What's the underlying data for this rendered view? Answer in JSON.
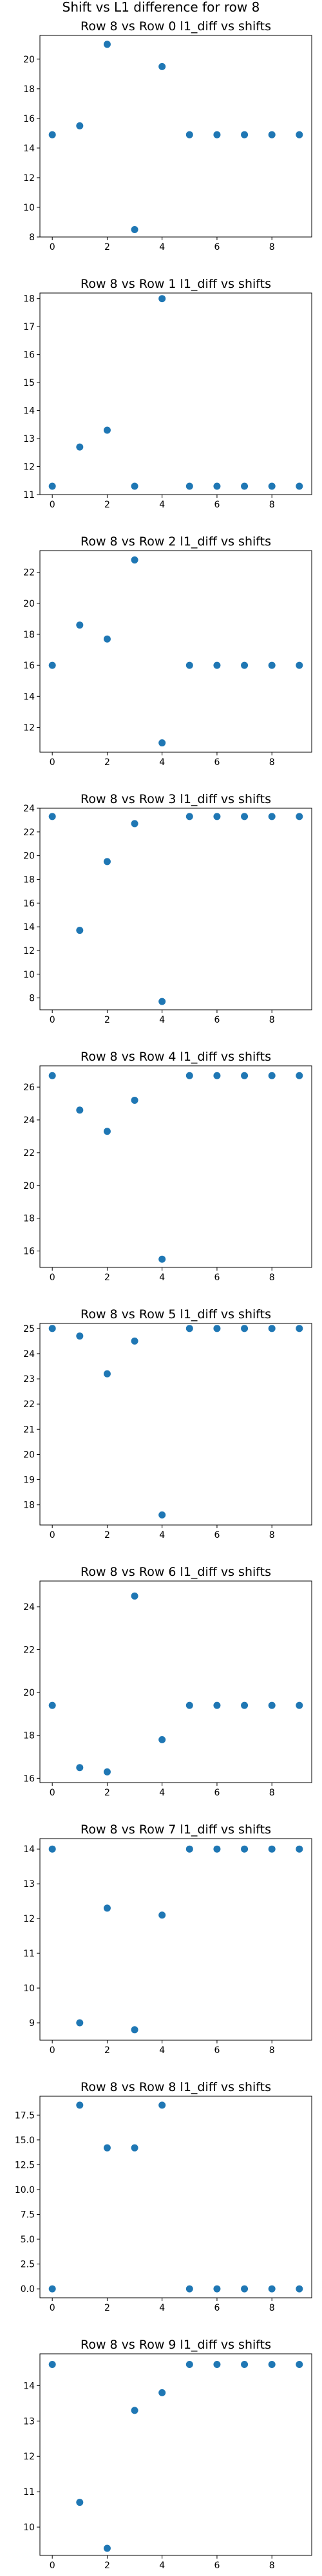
{
  "figure": {
    "suptitle": "Shift vs L1 difference for row 8"
  },
  "colors": {
    "marker": "#1f77b4",
    "axes": "#000000",
    "background": "#ffffff"
  },
  "chart_data": [
    {
      "type": "scatter",
      "title": "Row 8 vs Row 0 l1_diff vs shifts",
      "x": [
        0,
        1,
        2,
        3,
        4,
        5,
        6,
        7,
        8,
        9
      ],
      "y": [
        14.9,
        15.5,
        21.0,
        8.5,
        19.5,
        14.9,
        14.9,
        14.9,
        14.9,
        14.9
      ],
      "xlim": [
        -0.45,
        9.45
      ],
      "ylim": [
        8,
        21.6
      ],
      "xticks": [
        0,
        2,
        4,
        6,
        8
      ],
      "xtick_labels": [
        "0",
        "2",
        "4",
        "6",
        "8"
      ],
      "yticks": [
        8,
        10,
        12,
        14,
        16,
        18,
        20
      ],
      "ytick_labels": [
        "8",
        "10",
        "12",
        "14",
        "16",
        "18",
        "20"
      ]
    },
    {
      "type": "scatter",
      "title": "Row 8 vs Row 1 l1_diff vs shifts",
      "x": [
        0,
        1,
        2,
        3,
        4,
        5,
        6,
        7,
        8,
        9
      ],
      "y": [
        11.3,
        12.7,
        13.3,
        11.3,
        18.0,
        11.3,
        11.3,
        11.3,
        11.3,
        11.3
      ],
      "xlim": [
        -0.45,
        9.45
      ],
      "ylim": [
        11.0,
        18.2
      ],
      "xticks": [
        0,
        2,
        4,
        6,
        8
      ],
      "xtick_labels": [
        "0",
        "2",
        "4",
        "6",
        "8"
      ],
      "yticks": [
        11,
        12,
        13,
        14,
        15,
        16,
        17,
        18
      ],
      "ytick_labels": [
        "11",
        "12",
        "13",
        "14",
        "15",
        "16",
        "17",
        "18"
      ]
    },
    {
      "type": "scatter",
      "title": "Row 8 vs Row 2 l1_diff vs shifts",
      "x": [
        0,
        1,
        2,
        3,
        4,
        5,
        6,
        7,
        8,
        9
      ],
      "y": [
        16.0,
        18.6,
        17.7,
        22.8,
        11.0,
        16.0,
        16.0,
        16.0,
        16.0,
        16.0
      ],
      "xlim": [
        -0.45,
        9.45
      ],
      "ylim": [
        10.4,
        23.4
      ],
      "xticks": [
        0,
        2,
        4,
        6,
        8
      ],
      "xtick_labels": [
        "0",
        "2",
        "4",
        "6",
        "8"
      ],
      "yticks": [
        12,
        14,
        16,
        18,
        20,
        22
      ],
      "ytick_labels": [
        "12",
        "14",
        "16",
        "18",
        "20",
        "22"
      ]
    },
    {
      "type": "scatter",
      "title": "Row 8 vs Row 3 l1_diff vs shifts",
      "x": [
        0,
        1,
        2,
        3,
        4,
        5,
        6,
        7,
        8,
        9
      ],
      "y": [
        23.3,
        13.7,
        19.5,
        22.7,
        7.7,
        23.3,
        23.3,
        23.3,
        23.3,
        23.3
      ],
      "xlim": [
        -0.45,
        9.45
      ],
      "ylim": [
        7.0,
        24.0
      ],
      "xticks": [
        0,
        2,
        4,
        6,
        8
      ],
      "xtick_labels": [
        "0",
        "2",
        "4",
        "6",
        "8"
      ],
      "yticks": [
        8,
        10,
        12,
        14,
        16,
        18,
        20,
        22,
        24
      ],
      "ytick_labels": [
        "8",
        "10",
        "12",
        "14",
        "16",
        "18",
        "20",
        "22",
        "24"
      ]
    },
    {
      "type": "scatter",
      "title": "Row 8 vs Row 4 l1_diff vs shifts",
      "x": [
        0,
        1,
        2,
        3,
        4,
        5,
        6,
        7,
        8,
        9
      ],
      "y": [
        26.7,
        24.6,
        23.3,
        25.2,
        15.5,
        26.7,
        26.7,
        26.7,
        26.7,
        26.7
      ],
      "xlim": [
        -0.45,
        9.45
      ],
      "ylim": [
        15.0,
        27.3
      ],
      "xticks": [
        0,
        2,
        4,
        6,
        8
      ],
      "xtick_labels": [
        "0",
        "2",
        "4",
        "6",
        "8"
      ],
      "yticks": [
        16,
        18,
        20,
        22,
        24,
        26
      ],
      "ytick_labels": [
        "16",
        "18",
        "20",
        "22",
        "24",
        "26"
      ]
    },
    {
      "type": "scatter",
      "title": "Row 8 vs Row 5 l1_diff vs shifts",
      "x": [
        0,
        1,
        2,
        3,
        4,
        5,
        6,
        7,
        8,
        9
      ],
      "y": [
        25.0,
        24.7,
        23.2,
        24.5,
        17.6,
        25.0,
        25.0,
        25.0,
        25.0,
        25.0
      ],
      "xlim": [
        -0.45,
        9.45
      ],
      "ylim": [
        17.2,
        25.2
      ],
      "xticks": [
        0,
        2,
        4,
        6,
        8
      ],
      "xtick_labels": [
        "0",
        "2",
        "4",
        "6",
        "8"
      ],
      "yticks": [
        18,
        19,
        20,
        21,
        22,
        23,
        24,
        25
      ],
      "ytick_labels": [
        "18",
        "19",
        "20",
        "21",
        "22",
        "23",
        "24",
        "25"
      ]
    },
    {
      "type": "scatter",
      "title": "Row 8 vs Row 6 l1_diff vs shifts",
      "x": [
        0,
        1,
        2,
        3,
        4,
        5,
        6,
        7,
        8,
        9
      ],
      "y": [
        19.4,
        16.5,
        16.3,
        24.5,
        17.8,
        19.4,
        19.4,
        19.4,
        19.4,
        19.4
      ],
      "xlim": [
        -0.45,
        9.45
      ],
      "ylim": [
        15.8,
        25.2
      ],
      "xticks": [
        0,
        2,
        4,
        6,
        8
      ],
      "xtick_labels": [
        "0",
        "2",
        "4",
        "6",
        "8"
      ],
      "yticks": [
        16,
        18,
        20,
        22,
        24
      ],
      "ytick_labels": [
        "16",
        "18",
        "20",
        "22",
        "24"
      ]
    },
    {
      "type": "scatter",
      "title": "Row 8 vs Row 7 l1_diff vs shifts",
      "x": [
        0,
        1,
        2,
        3,
        4,
        5,
        6,
        7,
        8,
        9
      ],
      "y": [
        14.0,
        9.0,
        12.3,
        8.8,
        12.1,
        14.0,
        14.0,
        14.0,
        14.0,
        14.0
      ],
      "xlim": [
        -0.45,
        9.45
      ],
      "ylim": [
        8.5,
        14.3
      ],
      "xticks": [
        0,
        2,
        4,
        6,
        8
      ],
      "xtick_labels": [
        "0",
        "2",
        "4",
        "6",
        "8"
      ],
      "yticks": [
        9,
        10,
        11,
        12,
        13,
        14
      ],
      "ytick_labels": [
        "9",
        "10",
        "11",
        "12",
        "13",
        "14"
      ]
    },
    {
      "type": "scatter",
      "title": "Row 8 vs Row 8 l1_diff vs shifts",
      "x": [
        0,
        1,
        2,
        3,
        4,
        5,
        6,
        7,
        8,
        9
      ],
      "y": [
        0.0,
        18.5,
        14.2,
        14.2,
        18.5,
        0.0,
        0.0,
        0.0,
        0.0,
        0.0
      ],
      "xlim": [
        -0.45,
        9.45
      ],
      "ylim": [
        -0.9,
        19.4
      ],
      "xticks": [
        0,
        2,
        4,
        6,
        8
      ],
      "xtick_labels": [
        "0",
        "2",
        "4",
        "6",
        "8"
      ],
      "yticks": [
        0.0,
        2.5,
        5.0,
        7.5,
        10.0,
        12.5,
        15.0,
        17.5
      ],
      "ytick_labels": [
        "0.0",
        "2.5",
        "5.0",
        "7.5",
        "10.0",
        "12.5",
        "15.0",
        "17.5"
      ]
    },
    {
      "type": "scatter",
      "title": "Row 8 vs Row 9 l1_diff vs shifts",
      "x": [
        0,
        1,
        2,
        3,
        4,
        5,
        6,
        7,
        8,
        9
      ],
      "y": [
        14.6,
        10.7,
        9.4,
        13.3,
        13.8,
        14.6,
        14.6,
        14.6,
        14.6,
        14.6
      ],
      "xlim": [
        -0.45,
        9.45
      ],
      "ylim": [
        9.2,
        14.9
      ],
      "xticks": [
        0,
        2,
        4,
        6,
        8
      ],
      "xtick_labels": [
        "0",
        "2",
        "4",
        "6",
        "8"
      ],
      "yticks": [
        10,
        11,
        12,
        13,
        14
      ],
      "ytick_labels": [
        "10",
        "11",
        "12",
        "13",
        "14"
      ]
    }
  ]
}
